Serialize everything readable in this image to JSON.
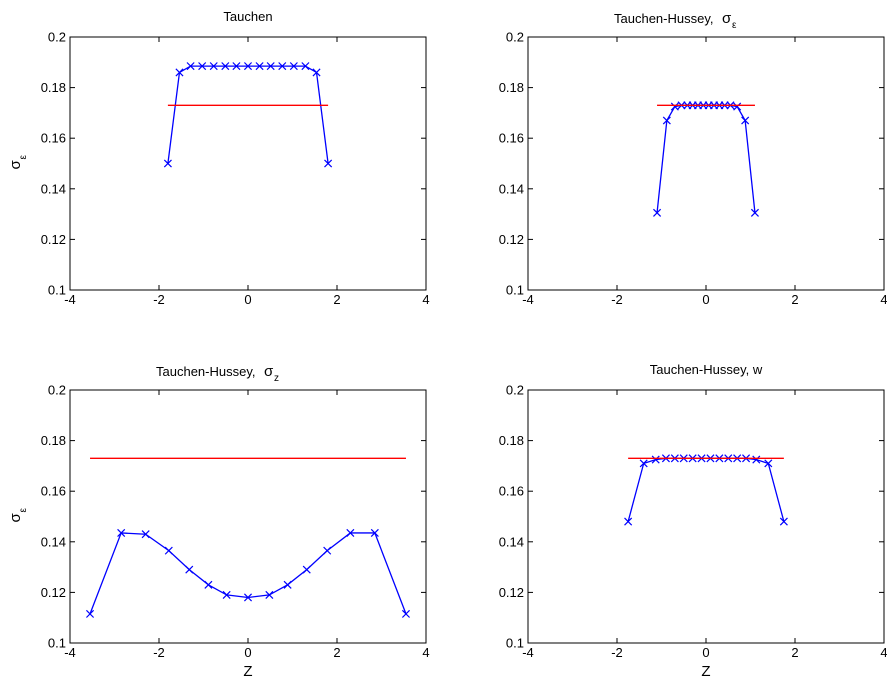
{
  "chart_data": [
    {
      "type": "line",
      "title": "Tauchen",
      "title_symbol": "",
      "title_symbol_sub": "",
      "xlabel": "",
      "ylabel_symbol": "σ",
      "ylabel_sub": "ε",
      "xlim": [
        -4,
        4
      ],
      "ylim": [
        0.1,
        0.2
      ],
      "xticks": [
        "-4",
        "-2",
        "0",
        "2",
        "4"
      ],
      "yticks": [
        "0.1",
        "0.12",
        "0.14",
        "0.16",
        "0.18",
        "0.2"
      ],
      "grid": false,
      "series": [
        {
          "marker": "x",
          "color": "#0000ff",
          "x": [
            -1.8,
            -1.54,
            -1.29,
            -1.03,
            -0.77,
            -0.51,
            -0.26,
            0.0,
            0.26,
            0.51,
            0.77,
            1.03,
            1.29,
            1.54,
            1.8
          ],
          "y": [
            0.15,
            0.186,
            0.1885,
            0.1885,
            0.1885,
            0.1885,
            0.1885,
            0.1885,
            0.1885,
            0.1885,
            0.1885,
            0.1885,
            0.1885,
            0.186,
            0.15
          ]
        },
        {
          "marker": "none",
          "color": "#ff0000",
          "x": [
            -1.8,
            1.8
          ],
          "y": [
            0.173,
            0.173
          ]
        }
      ]
    },
    {
      "type": "line",
      "title": "Tauchen-Hussey,",
      "title_symbol": "σ",
      "title_symbol_sub": "ε",
      "xlabel": "",
      "ylabel_symbol": "",
      "ylabel_sub": "",
      "xlim": [
        -4,
        4
      ],
      "ylim": [
        0.1,
        0.2
      ],
      "xticks": [
        "-4",
        "-2",
        "0",
        "2",
        "4"
      ],
      "yticks": [
        "0.1",
        "0.12",
        "0.14",
        "0.16",
        "0.18",
        "0.2"
      ],
      "grid": false,
      "series": [
        {
          "marker": "x",
          "color": "#0000ff",
          "x": [
            -1.1,
            -0.88,
            -0.7,
            -0.55,
            -0.42,
            -0.3,
            -0.18,
            -0.06,
            0.06,
            0.18,
            0.3,
            0.42,
            0.55,
            0.7,
            0.88,
            1.1
          ],
          "y": [
            0.1305,
            0.167,
            0.1725,
            0.173,
            0.173,
            0.173,
            0.173,
            0.173,
            0.173,
            0.173,
            0.173,
            0.173,
            0.173,
            0.1725,
            0.167,
            0.1305
          ]
        },
        {
          "marker": "none",
          "color": "#ff0000",
          "x": [
            -1.1,
            1.1
          ],
          "y": [
            0.173,
            0.173
          ]
        }
      ]
    },
    {
      "type": "line",
      "title": "Tauchen-Hussey,",
      "title_symbol": "σ",
      "title_symbol_sub": "z",
      "xlabel": "Z",
      "ylabel_symbol": "σ",
      "ylabel_sub": "ε",
      "xlim": [
        -4,
        4
      ],
      "ylim": [
        0.1,
        0.2
      ],
      "xticks": [
        "-4",
        "-2",
        "0",
        "2",
        "4"
      ],
      "yticks": [
        "0.1",
        "0.12",
        "0.14",
        "0.16",
        "0.18",
        "0.2"
      ],
      "grid": false,
      "series": [
        {
          "marker": "x",
          "color": "#0000ff",
          "x": [
            -3.55,
            -2.85,
            -2.3,
            -1.78,
            -1.32,
            -0.89,
            -0.48,
            0.0,
            0.48,
            0.89,
            1.32,
            1.78,
            2.3,
            2.85,
            3.55
          ],
          "y": [
            0.1115,
            0.1435,
            0.143,
            0.1365,
            0.129,
            0.123,
            0.119,
            0.118,
            0.119,
            0.123,
            0.129,
            0.1365,
            0.1435,
            0.1435,
            0.1115
          ]
        },
        {
          "marker": "none",
          "color": "#ff0000",
          "x": [
            -3.55,
            3.55
          ],
          "y": [
            0.173,
            0.173
          ]
        }
      ]
    },
    {
      "type": "line",
      "title": "Tauchen-Hussey, w",
      "title_symbol": "",
      "title_symbol_sub": "",
      "xlabel": "Z",
      "ylabel_symbol": "",
      "ylabel_sub": "",
      "xlim": [
        -4,
        4
      ],
      "ylim": [
        0.1,
        0.2
      ],
      "xticks": [
        "-4",
        "-2",
        "0",
        "2",
        "4"
      ],
      "yticks": [
        "0.1",
        "0.12",
        "0.14",
        "0.16",
        "0.18",
        "0.2"
      ],
      "grid": false,
      "series": [
        {
          "marker": "x",
          "color": "#0000ff",
          "x": [
            -1.75,
            -1.4,
            -1.13,
            -0.9,
            -0.7,
            -0.5,
            -0.3,
            -0.1,
            0.1,
            0.3,
            0.5,
            0.7,
            0.9,
            1.13,
            1.4,
            1.75
          ],
          "y": [
            0.148,
            0.171,
            0.1725,
            0.173,
            0.173,
            0.173,
            0.173,
            0.173,
            0.173,
            0.173,
            0.173,
            0.173,
            0.173,
            0.1725,
            0.171,
            0.148
          ]
        },
        {
          "marker": "none",
          "color": "#ff0000",
          "x": [
            -1.75,
            1.75
          ],
          "y": [
            0.173,
            0.173
          ]
        }
      ]
    }
  ]
}
